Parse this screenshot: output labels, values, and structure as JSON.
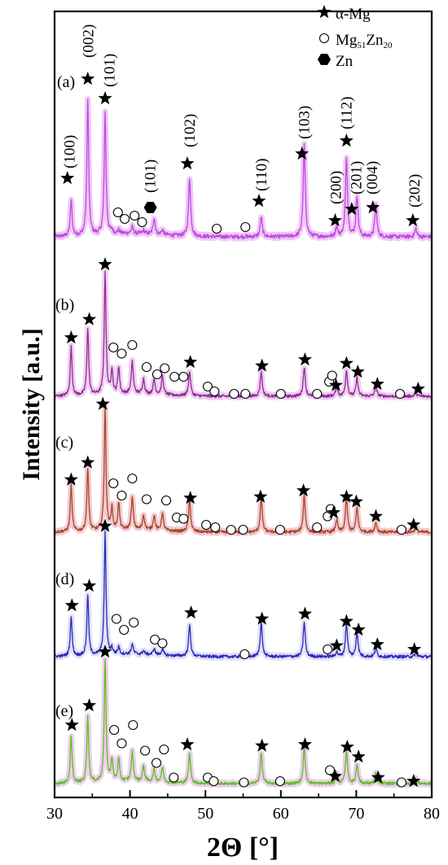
{
  "chart_data": {
    "type": "line",
    "xlabel": "2Θ [°]",
    "ylabel": "Intensity [a.u.]",
    "xlim": [
      30,
      80
    ],
    "xticks": [
      "30",
      "40",
      "50",
      "60",
      "70",
      "80"
    ],
    "grid": false,
    "legend": {
      "placement": "top-right",
      "entries": [
        {
          "marker": "star",
          "label": "α-Mg"
        },
        {
          "marker": "circle",
          "label": "Mg51Zn20",
          "label_main": "Mg",
          "sub1": "51",
          "label_mid": "Zn",
          "sub2": "20"
        },
        {
          "marker": "hexagon",
          "label": "Zn"
        }
      ]
    },
    "peaks": [
      {
        "x": 32.2,
        "h": 0.3,
        "w": 0.14
      },
      {
        "x": 34.4,
        "h": 0.6,
        "w": 0.14
      },
      {
        "x": 36.7,
        "h": 1.0,
        "w": 0.14
      },
      {
        "x": 37.6,
        "h": 0.15,
        "w": 0.14
      },
      {
        "x": 38.5,
        "h": 0.22,
        "w": 0.14
      },
      {
        "x": 40.3,
        "h": 0.25,
        "w": 0.16
      },
      {
        "x": 41.8,
        "h": 0.1,
        "w": 0.16
      },
      {
        "x": 43.2,
        "h": 0.1,
        "w": 0.16
      },
      {
        "x": 44.3,
        "h": 0.12,
        "w": 0.16
      },
      {
        "x": 47.9,
        "h": 0.28,
        "w": 0.16
      },
      {
        "x": 57.4,
        "h": 0.25,
        "w": 0.16
      },
      {
        "x": 63.1,
        "h": 0.35,
        "w": 0.16
      },
      {
        "x": 67.4,
        "h": 0.08,
        "w": 0.16
      },
      {
        "x": 68.7,
        "h": 0.24,
        "w": 0.16
      },
      {
        "x": 70.1,
        "h": 0.16,
        "w": 0.16
      },
      {
        "x": 72.6,
        "h": 0.1,
        "w": 0.16
      },
      {
        "x": 77.9,
        "h": 0.05,
        "w": 0.16
      }
    ],
    "series": [
      {
        "label": "(a)",
        "color": "#b94de0",
        "glow": "#f2c6f7",
        "intensities": [
          0.22,
          0.83,
          0.75,
          0.02,
          0.02,
          0.04,
          0.02,
          0.1,
          0.03,
          0.36,
          0.12,
          0.57,
          0.06,
          0.48,
          0.25,
          0.2,
          0.05
        ],
        "markers": [
          {
            "type": "star",
            "x": 31.7,
            "level": 0.36
          },
          {
            "type": "star",
            "x": 34.4,
            "level": 0.97
          },
          {
            "type": "star",
            "x": 36.7,
            "level": 0.85
          },
          {
            "type": "circle",
            "x": 38.4,
            "level": 0.15
          },
          {
            "type": "circle",
            "x": 39.3,
            "level": 0.11
          },
          {
            "type": "circle",
            "x": 40.6,
            "level": 0.13
          },
          {
            "type": "circle",
            "x": 41.6,
            "level": 0.09
          },
          {
            "type": "hexagon",
            "x": 42.7,
            "level": 0.18
          },
          {
            "type": "star",
            "x": 47.6,
            "level": 0.45
          },
          {
            "type": "circle",
            "x": 51.5,
            "level": 0.05
          },
          {
            "type": "circle",
            "x": 55.3,
            "level": 0.06
          },
          {
            "type": "star",
            "x": 57.1,
            "level": 0.22
          },
          {
            "type": "star",
            "x": 62.8,
            "level": 0.51
          },
          {
            "type": "star",
            "x": 67.2,
            "level": 0.1
          },
          {
            "type": "star",
            "x": 68.7,
            "level": 0.59
          },
          {
            "type": "star",
            "x": 69.4,
            "level": 0.17
          },
          {
            "type": "star",
            "x": 72.2,
            "level": 0.18
          },
          {
            "type": "star",
            "x": 77.5,
            "level": 0.1
          }
        ],
        "peak_labels": [
          {
            "text": "(100)",
            "x": 31.9,
            "level": 0.42
          },
          {
            "text": "(002)",
            "x": 34.4,
            "level": 1.1
          },
          {
            "text": "(101)",
            "x": 37.2,
            "level": 0.92
          },
          {
            "text": "(101)",
            "x": 42.6,
            "level": 0.27
          },
          {
            "text": "(102)",
            "x": 47.8,
            "level": 0.55
          },
          {
            "text": "(110)",
            "x": 57.3,
            "level": 0.28
          },
          {
            "text": "(103)",
            "x": 63.0,
            "level": 0.6
          },
          {
            "text": "(200)",
            "x": 67.2,
            "level": 0.2
          },
          {
            "text": "(112)",
            "x": 68.6,
            "level": 0.66
          },
          {
            "text": "(201)",
            "x": 69.9,
            "level": 0.26
          },
          {
            "text": "(004)",
            "x": 72.0,
            "level": 0.26
          },
          {
            "text": "(202)",
            "x": 77.6,
            "level": 0.18
          }
        ]
      },
      {
        "label": "(b)",
        "color": "#8c2f94",
        "glow": "#f1cdf1",
        "intensities": [
          0.4,
          0.55,
          1.0,
          0.2,
          0.22,
          0.26,
          0.12,
          0.12,
          0.15,
          0.2,
          0.2,
          0.24,
          0.08,
          0.21,
          0.15,
          0.08,
          0.03
        ],
        "markers": [
          {
            "type": "star",
            "x": 32.2,
            "level": 0.48
          },
          {
            "type": "star",
            "x": 34.6,
            "level": 0.63
          },
          {
            "type": "star",
            "x": 36.7,
            "level": 1.08
          },
          {
            "type": "circle",
            "x": 37.8,
            "level": 0.4
          },
          {
            "type": "circle",
            "x": 38.9,
            "level": 0.35
          },
          {
            "type": "circle",
            "x": 40.3,
            "level": 0.42
          },
          {
            "type": "circle",
            "x": 42.2,
            "level": 0.24
          },
          {
            "type": "circle",
            "x": 43.6,
            "level": 0.18
          },
          {
            "type": "circle",
            "x": 44.6,
            "level": 0.23
          },
          {
            "type": "circle",
            "x": 45.9,
            "level": 0.16
          },
          {
            "type": "circle",
            "x": 47.1,
            "level": 0.16
          },
          {
            "type": "star",
            "x": 48.0,
            "level": 0.28
          },
          {
            "type": "circle",
            "x": 50.3,
            "level": 0.08
          },
          {
            "type": "circle",
            "x": 51.2,
            "level": 0.04
          },
          {
            "type": "circle",
            "x": 53.8,
            "level": 0.02
          },
          {
            "type": "circle",
            "x": 55.3,
            "level": 0.02
          },
          {
            "type": "star",
            "x": 57.5,
            "level": 0.25
          },
          {
            "type": "circle",
            "x": 60.0,
            "level": 0.02
          },
          {
            "type": "star",
            "x": 63.2,
            "level": 0.3
          },
          {
            "type": "circle",
            "x": 64.8,
            "level": 0.02
          },
          {
            "type": "circle",
            "x": 66.4,
            "level": 0.12
          },
          {
            "type": "circle",
            "x": 66.8,
            "level": 0.17
          },
          {
            "type": "star",
            "x": 67.3,
            "level": 0.09
          },
          {
            "type": "star",
            "x": 68.7,
            "level": 0.27
          },
          {
            "type": "star",
            "x": 70.2,
            "level": 0.2
          },
          {
            "type": "star",
            "x": 72.8,
            "level": 0.1
          },
          {
            "type": "circle",
            "x": 75.8,
            "level": 0.02
          },
          {
            "type": "star",
            "x": 78.2,
            "level": 0.06
          }
        ]
      },
      {
        "label": "(c)",
        "color": "#a24a26",
        "glow": "#f4c9d2",
        "intensities": [
          0.38,
          0.52,
          1.0,
          0.18,
          0.22,
          0.26,
          0.12,
          0.12,
          0.14,
          0.26,
          0.28,
          0.3,
          0.1,
          0.28,
          0.2,
          0.08,
          0.04
        ],
        "markers": [
          {
            "type": "star",
            "x": 32.2,
            "level": 0.43
          },
          {
            "type": "star",
            "x": 34.4,
            "level": 0.57
          },
          {
            "type": "star",
            "x": 36.4,
            "level": 1.05
          },
          {
            "type": "circle",
            "x": 37.8,
            "level": 0.4
          },
          {
            "type": "circle",
            "x": 38.9,
            "level": 0.3
          },
          {
            "type": "circle",
            "x": 40.3,
            "level": 0.44
          },
          {
            "type": "circle",
            "x": 42.2,
            "level": 0.27
          },
          {
            "type": "circle",
            "x": 44.8,
            "level": 0.26
          },
          {
            "type": "circle",
            "x": 46.2,
            "level": 0.12
          },
          {
            "type": "circle",
            "x": 47.1,
            "level": 0.11
          },
          {
            "type": "star",
            "x": 48.0,
            "level": 0.28
          },
          {
            "type": "circle",
            "x": 50.1,
            "level": 0.06
          },
          {
            "type": "circle",
            "x": 51.3,
            "level": 0.04
          },
          {
            "type": "circle",
            "x": 53.4,
            "level": 0.02
          },
          {
            "type": "circle",
            "x": 55.0,
            "level": 0.02
          },
          {
            "type": "star",
            "x": 57.3,
            "level": 0.29
          },
          {
            "type": "circle",
            "x": 59.9,
            "level": 0.02
          },
          {
            "type": "star",
            "x": 63.0,
            "level": 0.34
          },
          {
            "type": "circle",
            "x": 64.8,
            "level": 0.04
          },
          {
            "type": "circle",
            "x": 66.2,
            "level": 0.13
          },
          {
            "type": "circle",
            "x": 66.6,
            "level": 0.19
          },
          {
            "type": "star",
            "x": 67.0,
            "level": 0.16
          },
          {
            "type": "star",
            "x": 68.7,
            "level": 0.29
          },
          {
            "type": "star",
            "x": 70.0,
            "level": 0.25
          },
          {
            "type": "star",
            "x": 72.6,
            "level": 0.13
          },
          {
            "type": "circle",
            "x": 76.0,
            "level": 0.02
          },
          {
            "type": "star",
            "x": 77.6,
            "level": 0.06
          }
        ]
      },
      {
        "label": "(d)",
        "color": "#2a2ab8",
        "glow": "#e2e0f6",
        "intensities": [
          0.33,
          0.5,
          1.0,
          0.05,
          0.06,
          0.08,
          0.03,
          0.05,
          0.05,
          0.25,
          0.28,
          0.28,
          0.04,
          0.27,
          0.2,
          0.07,
          0.03
        ],
        "markers": [
          {
            "type": "star",
            "x": 32.3,
            "level": 0.42
          },
          {
            "type": "star",
            "x": 34.6,
            "level": 0.58
          },
          {
            "type": "star",
            "x": 36.7,
            "level": 1.07
          },
          {
            "type": "circle",
            "x": 38.2,
            "level": 0.31
          },
          {
            "type": "circle",
            "x": 39.2,
            "level": 0.22
          },
          {
            "type": "circle",
            "x": 40.5,
            "level": 0.28
          },
          {
            "type": "circle",
            "x": 43.3,
            "level": 0.14
          },
          {
            "type": "circle",
            "x": 44.3,
            "level": 0.11
          },
          {
            "type": "star",
            "x": 48.1,
            "level": 0.36
          },
          {
            "type": "circle",
            "x": 55.2,
            "level": 0.02
          },
          {
            "type": "star",
            "x": 57.5,
            "level": 0.31
          },
          {
            "type": "star",
            "x": 63.2,
            "level": 0.35
          },
          {
            "type": "circle",
            "x": 66.2,
            "level": 0.06
          },
          {
            "type": "star",
            "x": 67.4,
            "level": 0.09
          },
          {
            "type": "star",
            "x": 68.7,
            "level": 0.29
          },
          {
            "type": "star",
            "x": 70.3,
            "level": 0.22
          },
          {
            "type": "star",
            "x": 72.8,
            "level": 0.1
          },
          {
            "type": "star",
            "x": 77.7,
            "level": 0.06
          }
        ]
      },
      {
        "label": "(e)",
        "color": "#5ac41e",
        "glow": "#f1ccf1",
        "intensities": [
          0.38,
          0.55,
          1.0,
          0.18,
          0.18,
          0.24,
          0.12,
          0.1,
          0.12,
          0.24,
          0.25,
          0.3,
          0.08,
          0.27,
          0.16,
          0.08,
          0.04
        ],
        "markers": [
          {
            "type": "star",
            "x": 32.3,
            "level": 0.48
          },
          {
            "type": "star",
            "x": 34.6,
            "level": 0.64
          },
          {
            "type": "star",
            "x": 36.7,
            "level": 1.08
          },
          {
            "type": "circle",
            "x": 37.9,
            "level": 0.44
          },
          {
            "type": "circle",
            "x": 38.9,
            "level": 0.33
          },
          {
            "type": "circle",
            "x": 40.4,
            "level": 0.48
          },
          {
            "type": "circle",
            "x": 42.0,
            "level": 0.27
          },
          {
            "type": "circle",
            "x": 43.5,
            "level": 0.17
          },
          {
            "type": "circle",
            "x": 44.5,
            "level": 0.28
          },
          {
            "type": "circle",
            "x": 45.8,
            "level": 0.05
          },
          {
            "type": "star",
            "x": 47.6,
            "level": 0.32
          },
          {
            "type": "circle",
            "x": 50.3,
            "level": 0.05
          },
          {
            "type": "circle",
            "x": 51.1,
            "level": 0.02
          },
          {
            "type": "circle",
            "x": 55.1,
            "level": 0.01
          },
          {
            "type": "star",
            "x": 57.5,
            "level": 0.31
          },
          {
            "type": "circle",
            "x": 59.9,
            "level": 0.02
          },
          {
            "type": "star",
            "x": 63.2,
            "level": 0.32
          },
          {
            "type": "circle",
            "x": 66.5,
            "level": 0.11
          },
          {
            "type": "star",
            "x": 67.2,
            "level": 0.06
          },
          {
            "type": "star",
            "x": 68.8,
            "level": 0.3
          },
          {
            "type": "star",
            "x": 70.3,
            "level": 0.22
          },
          {
            "type": "star",
            "x": 72.9,
            "level": 0.05
          },
          {
            "type": "circle",
            "x": 76.0,
            "level": 0.01
          },
          {
            "type": "star",
            "x": 77.6,
            "level": 0.02
          }
        ]
      }
    ]
  }
}
